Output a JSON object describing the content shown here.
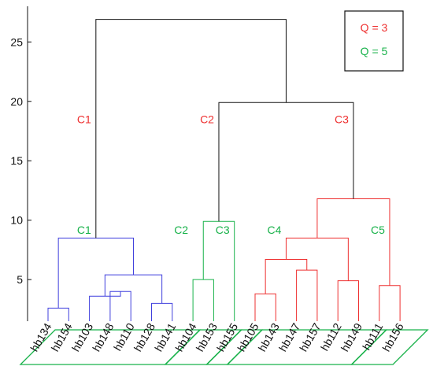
{
  "colors": {
    "black": "#111111",
    "red": "#ee3030",
    "green": "#18b24a",
    "blue": "#4040dd"
  },
  "chart_data": {
    "type": "dendrogram",
    "ylim": [
      1.5,
      28
    ],
    "yticks": [
      5,
      10,
      15,
      20,
      25
    ],
    "grid": false,
    "legend": {
      "placement": "top-right",
      "entries": [
        {
          "text": "Q = 3",
          "color": "red"
        },
        {
          "text": "Q = 5",
          "color": "green"
        }
      ]
    },
    "leaves": [
      "hb134",
      "hb154",
      "hb103",
      "hb148",
      "hb110",
      "hb128",
      "hb141",
      "hb104",
      "hb153",
      "hb155",
      "hb105",
      "hb143",
      "hb147",
      "hb157",
      "hb112",
      "hb149",
      "hb111",
      "hb156"
    ],
    "leaf_groups": [
      [
        0,
        6
      ],
      [
        7,
        8
      ],
      [
        9,
        9
      ],
      [
        10,
        15
      ],
      [
        16,
        17
      ]
    ],
    "merges": [
      {
        "l": 0,
        "r": 1,
        "h": 2.6,
        "color": "blue"
      },
      {
        "l": 3,
        "r": 4,
        "h": 4.0,
        "color": "blue"
      },
      {
        "l": 2,
        "r": 19,
        "h": 3.6,
        "color": "blue"
      },
      {
        "l": 5,
        "r": 6,
        "h": 3.0,
        "color": "blue"
      },
      {
        "l": 20,
        "r": 21,
        "h": 5.4,
        "color": "blue"
      },
      {
        "l": 18,
        "r": 22,
        "h": 8.5,
        "color": "blue"
      },
      {
        "l": 7,
        "r": 8,
        "h": 5.0,
        "color": "green"
      },
      {
        "l": 24,
        "r": 9,
        "h": 9.9,
        "color": "green"
      },
      {
        "l": 10,
        "r": 11,
        "h": 3.8,
        "color": "red"
      },
      {
        "l": 12,
        "r": 13,
        "h": 5.8,
        "color": "red"
      },
      {
        "l": 26,
        "r": 27,
        "h": 6.7,
        "color": "red"
      },
      {
        "l": 14,
        "r": 15,
        "h": 4.9,
        "color": "red"
      },
      {
        "l": 28,
        "r": 29,
        "h": 8.5,
        "color": "red"
      },
      {
        "l": 16,
        "r": 17,
        "h": 4.5,
        "color": "red"
      },
      {
        "l": 30,
        "r": 31,
        "h": 11.8,
        "color": "red"
      },
      {
        "l": 25,
        "r": 32,
        "h": 19.9,
        "color": "black"
      },
      {
        "l": 23,
        "r": 33,
        "h": 26.9,
        "color": "black"
      }
    ],
    "cluster_labels": [
      {
        "text": "C1",
        "color": "red",
        "node": 23,
        "y": 18.5
      },
      {
        "text": "C2",
        "color": "red",
        "node": 25,
        "y": 18.5
      },
      {
        "text": "C3",
        "color": "red",
        "node": 32,
        "y": 18.5
      },
      {
        "text": "C1",
        "color": "green",
        "node": 23,
        "y": 9.2
      },
      {
        "text": "C2",
        "color": "green",
        "node": 7,
        "y": 9.2
      },
      {
        "text": "C3",
        "color": "green",
        "node": 9,
        "y": 9.2
      },
      {
        "text": "C4",
        "color": "green",
        "node": 28,
        "y": 9.2
      },
      {
        "text": "C5",
        "color": "green",
        "node": 31,
        "y": 9.2
      }
    ]
  }
}
